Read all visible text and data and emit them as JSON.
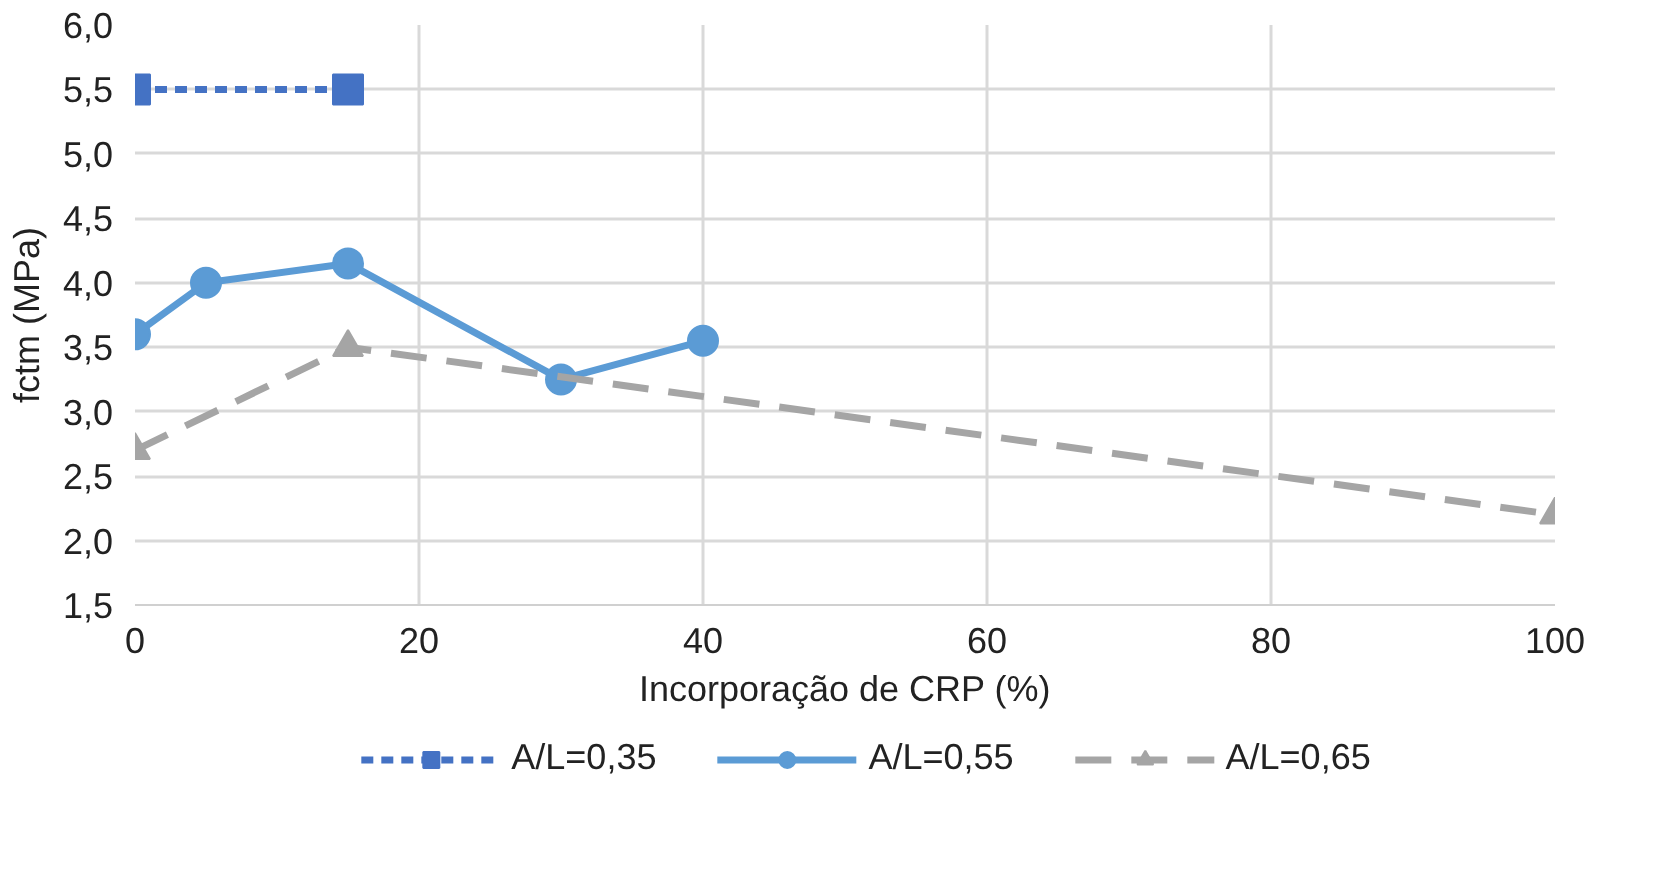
{
  "chart_data": {
    "type": "line",
    "xlabel": "Incorporação de CRP (%)",
    "ylabel": "fctm (MPa)",
    "xlim": [
      0,
      100
    ],
    "xticks": [
      0,
      20,
      40,
      60,
      80,
      100
    ],
    "ylim": [
      1.5,
      6.0
    ],
    "yticks": [
      {
        "value": 1.5,
        "label": "1,5"
      },
      {
        "value": 2.0,
        "label": "2,0"
      },
      {
        "value": 2.5,
        "label": "2,5"
      },
      {
        "value": 3.0,
        "label": "3,0"
      },
      {
        "value": 3.5,
        "label": "3,5"
      },
      {
        "value": 4.0,
        "label": "4,0"
      },
      {
        "value": 4.5,
        "label": "4,5"
      },
      {
        "value": 5.0,
        "label": "5,0"
      },
      {
        "value": 5.5,
        "label": "5,5"
      },
      {
        "value": 6.0,
        "label": "6,0"
      }
    ],
    "grid": true,
    "legend": "bottom",
    "series": [
      {
        "name": "A/L=0,35",
        "color": "#4472c4",
        "marker": "square",
        "line_style": "dotted",
        "x": [
          0,
          15
        ],
        "values": [
          5.5,
          5.5
        ]
      },
      {
        "name": "A/L=0,55",
        "color": "#5b9bd5",
        "marker": "circle",
        "line_style": "solid",
        "x": [
          0,
          5,
          15,
          30,
          40
        ],
        "values": [
          3.6,
          4.0,
          4.15,
          3.25,
          3.55
        ]
      },
      {
        "name": "A/L=0,65",
        "color": "#a5a5a5",
        "marker": "triangle",
        "line_style": "dashed",
        "x": [
          0,
          15,
          100
        ],
        "values": [
          2.7,
          3.5,
          2.2
        ]
      }
    ]
  }
}
